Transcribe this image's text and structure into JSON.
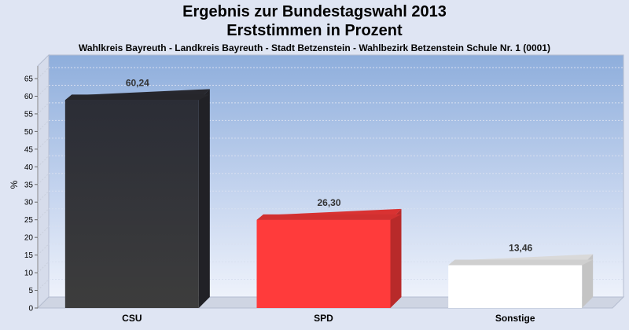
{
  "chart_data": {
    "type": "bar",
    "title": "Ergebnis zur Bundestagswahl 2013",
    "subtitle_line": "Erststimmen in Prozent",
    "subtitle": "Wahlkreis Bayreuth - Landkreis Bayreuth - Stadt Betzenstein - Wahlbezirk Betzenstein Schule Nr. 1 (0001)",
    "xlabel": "",
    "ylabel": "%",
    "categories": [
      "CSU",
      "SPD",
      "Sonstige"
    ],
    "values": [
      60.24,
      26.3,
      13.46
    ],
    "value_labels": [
      "60,24",
      "26,30",
      "13,46"
    ],
    "colors": [
      "#2e2e35",
      "#ff3b3b",
      "#ffffff"
    ],
    "ylim": [
      0,
      65
    ],
    "yticks": [
      0,
      5,
      10,
      15,
      20,
      25,
      30,
      35,
      40,
      45,
      50,
      55,
      60,
      65
    ],
    "grid": true,
    "legend": "none"
  }
}
